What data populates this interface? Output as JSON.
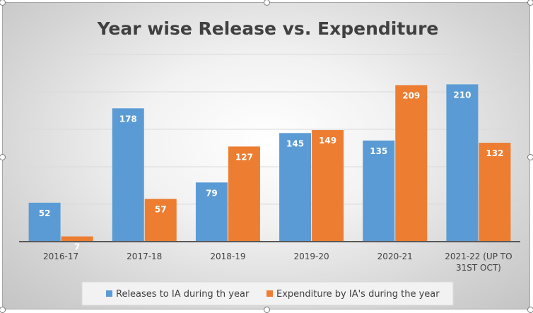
{
  "chart_data": {
    "type": "bar",
    "title": "Year wise Release vs. Expenditure",
    "xlabel": "",
    "ylabel": "",
    "ylim": [
      0,
      250
    ],
    "grid": true,
    "legend_position": "bottom",
    "categories": [
      "2016-17",
      "2017-18",
      "2018-19",
      "2019-20",
      "2020-21",
      "2021-22 (UP TO 31ST OCT)"
    ],
    "category_lines": [
      [
        "2016-17"
      ],
      [
        "2017-18"
      ],
      [
        "2018-19"
      ],
      [
        "2019-20"
      ],
      [
        "2020-21"
      ],
      [
        "2021-22 (UP TO",
        "31ST OCT)"
      ]
    ],
    "series": [
      {
        "name": "Releases to IA during th year",
        "color": "#5b9bd5",
        "values": [
          52,
          178,
          79,
          145,
          135,
          210
        ]
      },
      {
        "name": "Expenditure by IA's during the year",
        "color": "#ed7d31",
        "values": [
          7,
          57,
          127,
          149,
          209,
          132
        ]
      }
    ]
  }
}
